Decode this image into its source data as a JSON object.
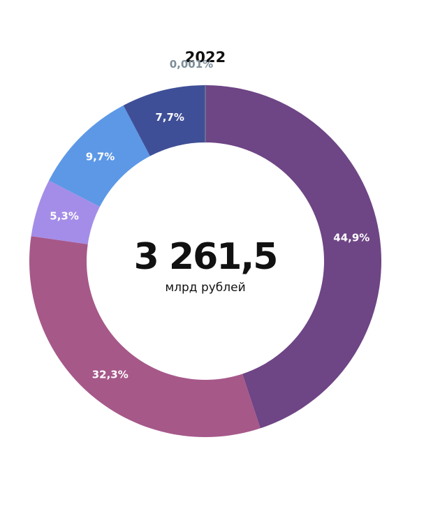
{
  "chart_data": {
    "type": "pie",
    "title": "2022",
    "center_value": "3 261,5",
    "center_unit": "млрд рублей",
    "slices": [
      {
        "label": "44,9%",
        "value": 44.9,
        "color": "#6e4585",
        "label_color": "#ffffff"
      },
      {
        "label": "32,3%",
        "value": 32.3,
        "color": "#a65889",
        "label_color": "#ffffff"
      },
      {
        "label": "5,3%",
        "value": 5.3,
        "color": "#a48de8",
        "label_color": "#ffffff"
      },
      {
        "label": "9,7%",
        "value": 9.7,
        "color": "#5c98e6",
        "label_color": "#ffffff"
      },
      {
        "label": "7,7%",
        "value": 7.7,
        "color": "#3f4f97",
        "label_color": "#ffffff"
      },
      {
        "label": "0,001%",
        "value": 0.001,
        "color": "#7d8e99",
        "label_color": "#7d8e99"
      }
    ]
  }
}
